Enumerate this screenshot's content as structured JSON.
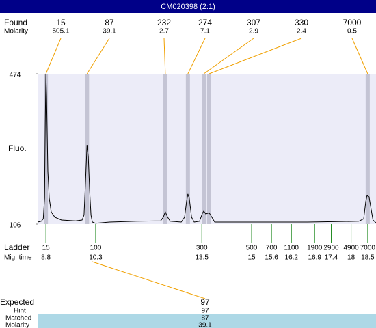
{
  "title": "CM020398 (2:1)",
  "found": {
    "label": "Found",
    "molarity_label": "Molarity",
    "peaks": [
      {
        "size": 15,
        "molarity": 505.1,
        "time": 8.8
      },
      {
        "size": 87,
        "molarity": 39.1,
        "time": 10.04
      },
      {
        "size": 232,
        "molarity": 2.7,
        "time": 12.4
      },
      {
        "size": 274,
        "molarity": 7.1,
        "time": 13.08
      },
      {
        "size": 307,
        "molarity": 2.9,
        "time": 13.56
      },
      {
        "size": 330,
        "molarity": 2.4,
        "time": 13.72
      },
      {
        "size": 7000,
        "molarity": 0.5,
        "time": 18.5
      }
    ]
  },
  "plot": {
    "y_label": "Fluo.",
    "ylim": [
      106,
      474
    ],
    "yticks": [
      106,
      474
    ],
    "xlim": [
      8.55,
      18.75
    ],
    "trace": {
      "x": [
        8.55,
        8.66,
        8.72,
        8.76,
        8.78,
        8.8,
        8.82,
        8.84,
        8.86,
        8.9,
        8.96,
        9.07,
        9.27,
        9.69,
        9.89,
        9.95,
        9.99,
        10.04,
        10.08,
        10.12,
        10.16,
        10.2,
        10.3,
        10.72,
        11.54,
        12.26,
        12.34,
        12.4,
        12.47,
        12.55,
        12.88,
        12.98,
        13.04,
        13.08,
        13.12,
        13.19,
        13.27,
        13.43,
        13.52,
        13.56,
        13.62,
        13.72,
        13.8,
        13.89,
        14.63,
        16.69,
        18.23,
        18.38,
        18.44,
        18.48,
        18.54,
        18.6,
        18.66,
        18.75
      ],
      "y": [
        111,
        113,
        119,
        170,
        354,
        474,
        420,
        320,
        236,
        170,
        136,
        123,
        116,
        114,
        116,
        128,
        203,
        300,
        270,
        186,
        128,
        111,
        108,
        111,
        113,
        114,
        123,
        136,
        123,
        113,
        111,
        123,
        161,
        180,
        170,
        123,
        111,
        113,
        133,
        138,
        131,
        134,
        123,
        111,
        111,
        111,
        113,
        119,
        161,
        176,
        173,
        144,
        116,
        109
      ]
    }
  },
  "ladder": {
    "label": "Ladder",
    "time_label": "Mig. time",
    "sizes": [
      15,
      100,
      300,
      500,
      700,
      1100,
      1900,
      2900,
      4900,
      7000
    ],
    "times": [
      8.8,
      10.3,
      13.5,
      15,
      15.6,
      16.2,
      16.9,
      17.4,
      18,
      18.5
    ]
  },
  "expected": {
    "label": "Expected",
    "value": 97,
    "hint_label": "Hint",
    "hint": 97,
    "matched_label": "Matched",
    "matched": 87,
    "molarity_label": "Molarity",
    "molarity": 39.1
  }
}
